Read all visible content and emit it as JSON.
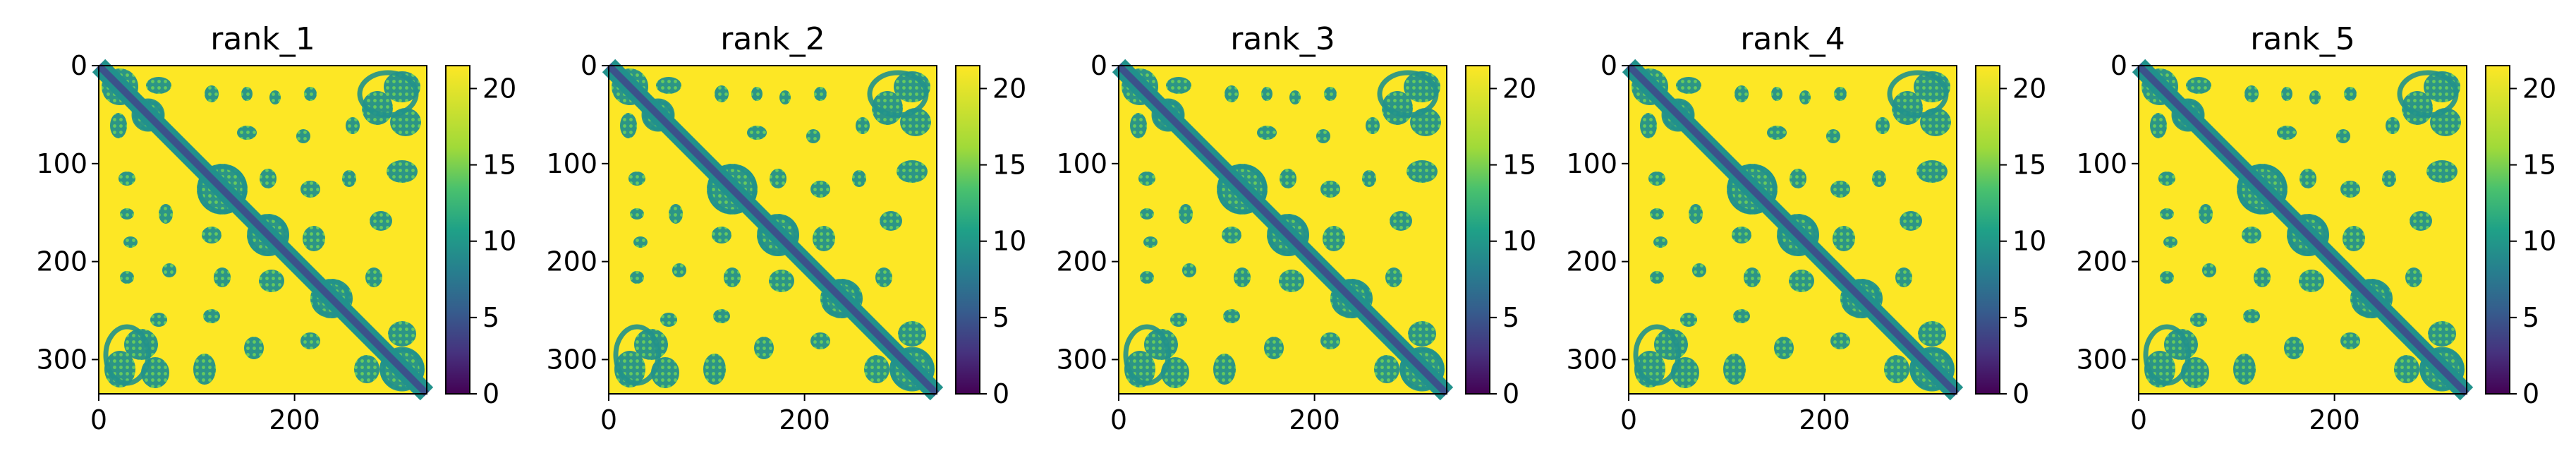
{
  "chart_data": [
    {
      "type": "heatmap",
      "title": "rank_1",
      "x_ticks": [
        "0",
        "200"
      ],
      "y_ticks": [
        "0",
        "100",
        "200",
        "300"
      ],
      "colorbar_ticks": [
        "0",
        "5",
        "10",
        "15",
        "20"
      ],
      "colorbar_range": [
        0,
        21.5
      ],
      "matrix_size": 335,
      "colormap": "viridis"
    },
    {
      "type": "heatmap",
      "title": "rank_2",
      "x_ticks": [
        "0",
        "200"
      ],
      "y_ticks": [
        "0",
        "100",
        "200",
        "300"
      ],
      "colorbar_ticks": [
        "0",
        "5",
        "10",
        "15",
        "20"
      ],
      "colorbar_range": [
        0,
        21.5
      ],
      "matrix_size": 335,
      "colormap": "viridis"
    },
    {
      "type": "heatmap",
      "title": "rank_3",
      "x_ticks": [
        "0",
        "200"
      ],
      "y_ticks": [
        "0",
        "100",
        "200",
        "300"
      ],
      "colorbar_ticks": [
        "0",
        "5",
        "10",
        "15",
        "20"
      ],
      "colorbar_range": [
        0,
        21.5
      ],
      "matrix_size": 335,
      "colormap": "viridis"
    },
    {
      "type": "heatmap",
      "title": "rank_4",
      "x_ticks": [
        "0",
        "200"
      ],
      "y_ticks": [
        "0",
        "100",
        "200",
        "300"
      ],
      "colorbar_ticks": [
        "0",
        "5",
        "10",
        "15",
        "20"
      ],
      "colorbar_range": [
        0,
        21.5
      ],
      "matrix_size": 335,
      "colormap": "viridis"
    },
    {
      "type": "heatmap",
      "title": "rank_5",
      "x_ticks": [
        "0",
        "200"
      ],
      "y_ticks": [
        "0",
        "100",
        "200",
        "300"
      ],
      "colorbar_ticks": [
        "0",
        "5",
        "10",
        "15",
        "20"
      ],
      "colorbar_range": [
        0,
        21.5
      ],
      "matrix_size": 335,
      "colormap": "viridis"
    }
  ],
  "colors": {
    "far": "#fde725",
    "mid": "#21918c",
    "near": "#3b528b",
    "min": "#440154"
  }
}
